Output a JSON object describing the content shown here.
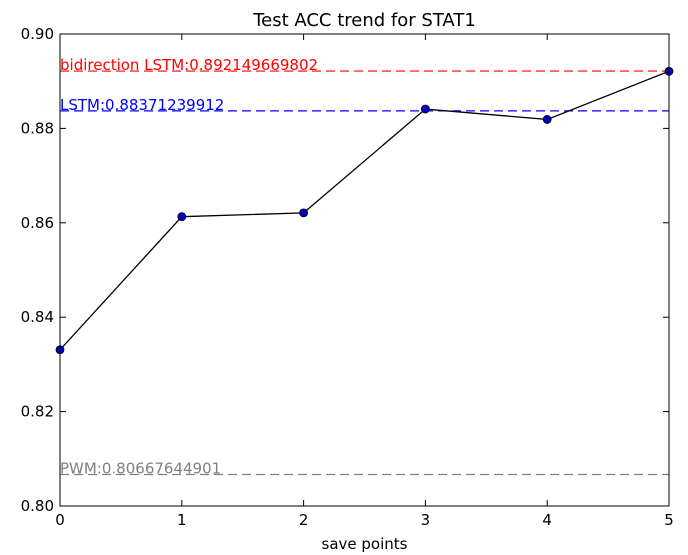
{
  "chart_data": {
    "type": "line",
    "title": "Test ACC trend for STAT1",
    "xlabel": "save points",
    "ylabel": "",
    "xlim": [
      0,
      5
    ],
    "ylim": [
      0.8,
      0.9
    ],
    "xticks": [
      "0",
      "1",
      "2",
      "3",
      "4",
      "5"
    ],
    "yticks": [
      "0.80",
      "0.82",
      "0.84",
      "0.86",
      "0.88",
      "0.90"
    ],
    "grid": false,
    "series": [
      {
        "x": [
          0,
          1,
          2,
          3,
          4,
          5
        ],
        "values": [
          0.8331,
          0.8613,
          0.8621,
          0.8841,
          0.8819,
          0.8921
        ],
        "line_color": "#000000",
        "marker_color": "#0000bf"
      }
    ],
    "reference_lines": [
      {
        "label": "bidirection LSTM:0.892149669802",
        "value": 0.892149669802,
        "color": "#ff0000"
      },
      {
        "label": "LSTM:0.88371239912",
        "value": 0.88371239912,
        "color": "#0000ff"
      },
      {
        "label": "PWM:0.80667644901",
        "value": 0.80667644901,
        "color": "#808080"
      }
    ]
  }
}
